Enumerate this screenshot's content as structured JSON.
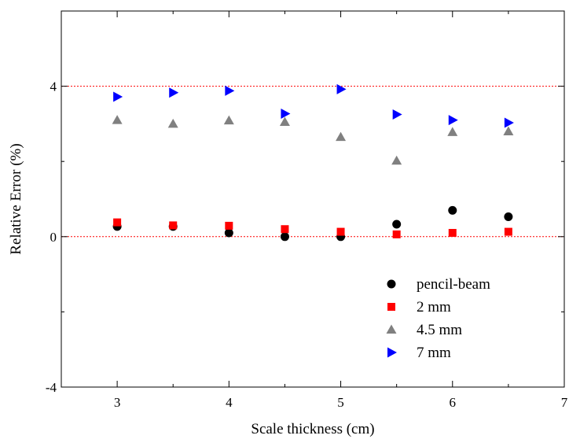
{
  "chart_data": {
    "type": "scatter",
    "title": "",
    "xlabel": "Scale thickness (cm)",
    "ylabel": "Relative Error (%)",
    "xlim": [
      2.5,
      7
    ],
    "ylim": [
      -4,
      6
    ],
    "x_ticks": [
      3,
      4,
      5,
      6,
      7
    ],
    "y_ticks": [
      -4,
      0,
      4
    ],
    "reference_lines": [
      0,
      4
    ],
    "reference_line_color": "#ff0000",
    "grid": false,
    "legend_position": "bottom-right",
    "series": [
      {
        "name": "pencil-beam",
        "marker": "circle",
        "color": "#000000",
        "x": [
          3,
          3.5,
          4,
          4.5,
          5,
          5.5,
          6,
          6.5
        ],
        "y": [
          0.27,
          0.27,
          0.1,
          0.0,
          0.0,
          0.33,
          0.7,
          0.53
        ]
      },
      {
        "name": "2 mm",
        "marker": "square",
        "color": "#ff0000",
        "x": [
          3,
          3.5,
          4,
          4.5,
          5,
          5.5,
          6,
          6.5
        ],
        "y": [
          0.38,
          0.3,
          0.29,
          0.2,
          0.13,
          0.06,
          0.1,
          0.13
        ]
      },
      {
        "name": "4.5 mm",
        "marker": "triangle-up",
        "color": "#808080",
        "x": [
          3,
          3.5,
          4,
          4.5,
          5,
          5.5,
          6,
          6.5
        ],
        "y": [
          3.1,
          3.0,
          3.09,
          3.05,
          2.65,
          2.02,
          2.78,
          2.8
        ]
      },
      {
        "name": "7 mm",
        "marker": "triangle-right",
        "color": "#0000ff",
        "x": [
          3,
          3.5,
          4,
          4.5,
          5,
          5.5,
          6,
          6.5
        ],
        "y": [
          3.72,
          3.83,
          3.88,
          3.27,
          3.92,
          3.25,
          3.1,
          3.03
        ]
      }
    ]
  }
}
